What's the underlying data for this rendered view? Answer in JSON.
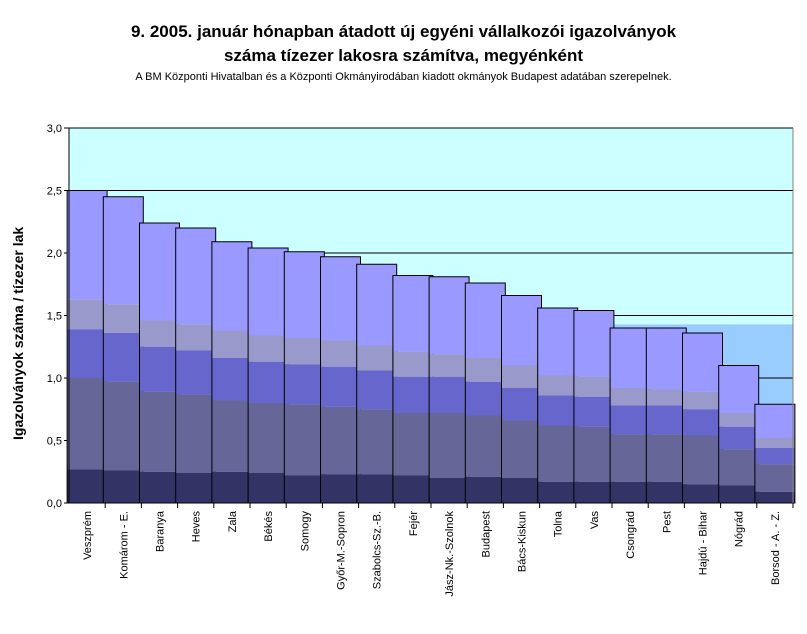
{
  "chart_data": {
    "type": "bar",
    "stacked": true,
    "title": "9.   2005. január hónapban átadott új egyéni vállalkozói  igazolványok",
    "title_line2": "száma tízezer lakosra számítva, megyénként",
    "subtitle": "A BM Központi Hivatalban és a Központi Okmányirodában kiadott okmányok Budapest adatában szerepelnek.",
    "ylabel": "Igazolványok száma / tízezer lak",
    "ylim": [
      0,
      3
    ],
    "yticks": [
      "0,0",
      "0,5",
      "1,0",
      "1,5",
      "2,0",
      "2,5",
      "3,0"
    ],
    "reference_bands": [
      {
        "from": 0,
        "to": 1.43,
        "color": "#99ccff"
      },
      {
        "from": 1.43,
        "to": 2.5,
        "color": "#ccffff"
      },
      {
        "from": 2.5,
        "to": 3.0,
        "color": "#ccffff"
      }
    ],
    "categories": [
      "Veszprém",
      "Komárom - E.",
      "Baranya",
      "Heves",
      "Zala",
      "Békés",
      "Somogy",
      "Győr-M.-Sopron",
      "Szabolcs-Sz.-B.",
      "Fejér",
      "Jász-Nk.-Szolnok",
      "Budapest",
      "Bács-Kiskun",
      "Tolna",
      "Vas",
      "Csongrád",
      "Pest",
      "Hajdú - Bihar",
      "Nógrád",
      "Borsod - A. - Z."
    ],
    "totals": [
      2.5,
      2.45,
      2.24,
      2.2,
      2.09,
      2.04,
      2.01,
      1.97,
      1.91,
      1.82,
      1.81,
      1.76,
      1.66,
      1.56,
      1.54,
      1.4,
      1.4,
      1.36,
      1.1,
      0.79
    ],
    "segment_boundaries": [
      [
        0.27,
        1.0,
        1.39,
        1.63
      ],
      [
        0.26,
        0.97,
        1.36,
        1.59
      ],
      [
        0.25,
        0.89,
        1.25,
        1.46
      ],
      [
        0.24,
        0.87,
        1.22,
        1.43
      ],
      [
        0.25,
        0.82,
        1.16,
        1.38
      ],
      [
        0.24,
        0.8,
        1.13,
        1.34
      ],
      [
        0.22,
        0.79,
        1.11,
        1.32
      ],
      [
        0.23,
        0.77,
        1.09,
        1.3
      ],
      [
        0.23,
        0.75,
        1.06,
        1.26
      ],
      [
        0.22,
        0.72,
        1.01,
        1.21
      ],
      [
        0.2,
        0.72,
        1.01,
        1.19
      ],
      [
        0.21,
        0.7,
        0.97,
        1.16
      ],
      [
        0.2,
        0.66,
        0.92,
        1.1
      ],
      [
        0.17,
        0.62,
        0.86,
        1.02
      ],
      [
        0.17,
        0.61,
        0.85,
        1.01
      ],
      [
        0.17,
        0.55,
        0.78,
        0.92
      ],
      [
        0.17,
        0.55,
        0.78,
        0.91
      ],
      [
        0.15,
        0.54,
        0.75,
        0.89
      ],
      [
        0.14,
        0.43,
        0.61,
        0.72
      ],
      [
        0.09,
        0.31,
        0.44,
        0.52
      ]
    ],
    "segment_colors": [
      "#333366",
      "#666699",
      "#6666cc",
      "#9999cc",
      "#9999ff"
    ],
    "grid": true,
    "legend": "none"
  }
}
